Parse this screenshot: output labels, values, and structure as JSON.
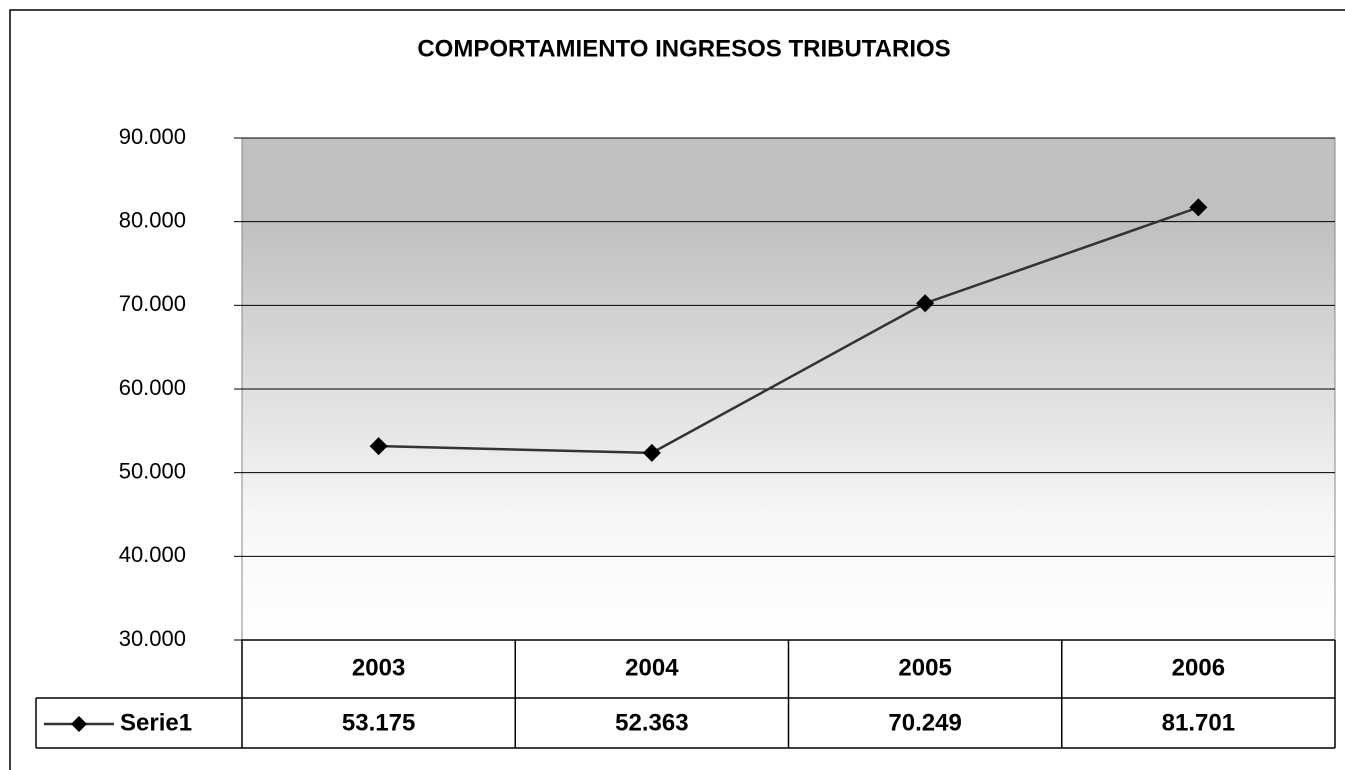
{
  "chart_data": {
    "type": "line",
    "title": "COMPORTAMIENTO INGRESOS TRIBUTARIOS",
    "categories": [
      "2003",
      "2004",
      "2005",
      "2006"
    ],
    "series": [
      {
        "name": "Serie1",
        "color": "#333333",
        "values": [
          53175,
          52363,
          70249,
          81701
        ],
        "value_labels": [
          "53.175",
          "52.363",
          "70.249",
          "81.701"
        ]
      }
    ],
    "ylim": [
      30000,
      90000
    ],
    "yticks": [
      {
        "value": 30000,
        "label": "30.000"
      },
      {
        "value": 40000,
        "label": "40.000"
      },
      {
        "value": 50000,
        "label": "50.000"
      },
      {
        "value": 60000,
        "label": "60.000"
      },
      {
        "value": 70000,
        "label": "70.000"
      },
      {
        "value": 80000,
        "label": "80.000"
      },
      {
        "value": 90000,
        "label": "90.000"
      }
    ],
    "grid": true
  }
}
